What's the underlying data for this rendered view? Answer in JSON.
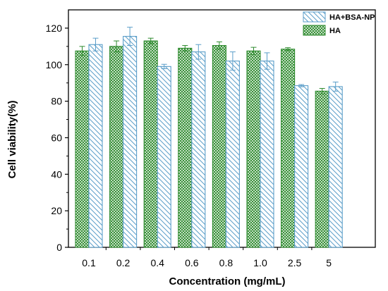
{
  "chart_data": {
    "type": "bar",
    "xlabel": "Concentration (mg/mL)",
    "ylabel": "Cell viability(%)",
    "ylim": [
      0,
      130
    ],
    "yticks": [
      0,
      20,
      40,
      60,
      80,
      100,
      120
    ],
    "categories": [
      "0.1",
      "0.2",
      "0.4",
      "0.6",
      "0.8",
      "1.0",
      "2.5",
      "5"
    ],
    "legend_position": "top-right",
    "series": [
      {
        "name": "HA",
        "pattern": "crosshatch-green",
        "color": "#2e8b2e",
        "values": [
          107.5,
          110,
          113,
          109,
          110.5,
          107.5,
          108.5,
          85.5
        ],
        "errors": [
          2.5,
          3,
          1.5,
          1.5,
          2,
          2,
          0.8,
          1.5
        ]
      },
      {
        "name": "HA+BSA-NP",
        "pattern": "diagonal-blue",
        "color": "#5b9ec9",
        "values": [
          111,
          115.5,
          99,
          107,
          102,
          102,
          88.5,
          88
        ],
        "errors": [
          3.5,
          5,
          1.2,
          4,
          5,
          4.5,
          0.6,
          2.5
        ]
      }
    ]
  }
}
